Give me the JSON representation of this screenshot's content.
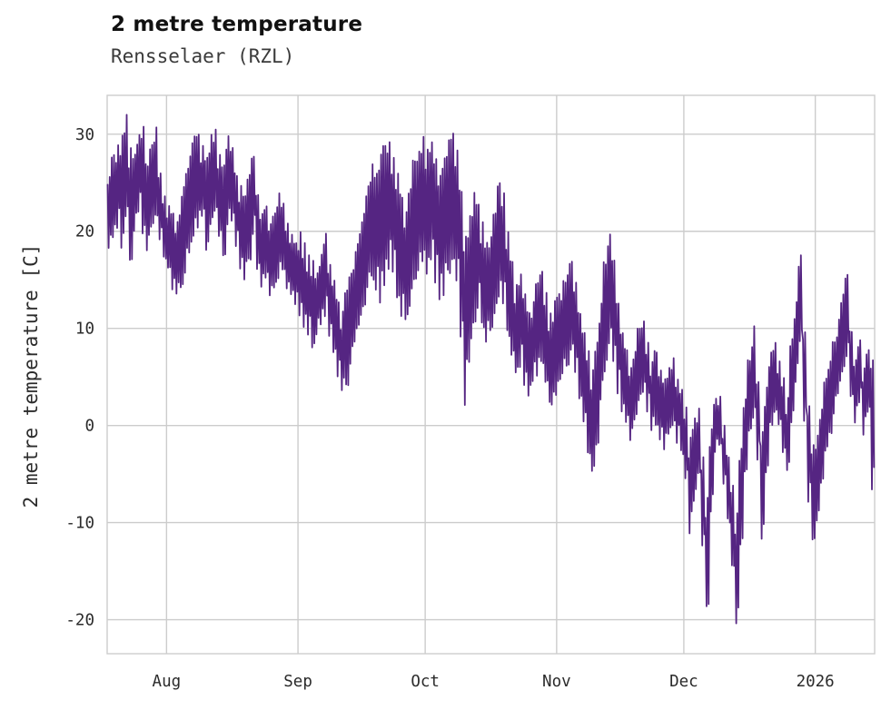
{
  "header": {
    "title": "2 metre temperature",
    "subtitle": "Rensselaer (RZL)"
  },
  "chart_data": {
    "type": "line",
    "title": "2 metre temperature",
    "subtitle": "Rensselaer (RZL)",
    "xlabel": "",
    "ylabel": "2 metre temperature [C]",
    "ylim": [
      -23.5,
      34
    ],
    "y_ticks": [
      -20,
      -10,
      0,
      10,
      20,
      30
    ],
    "x_ticks": [
      {
        "label": "Aug",
        "day": 14
      },
      {
        "label": "Sep",
        "day": 45
      },
      {
        "label": "Oct",
        "day": 75
      },
      {
        "label": "Nov",
        "day": 106
      },
      {
        "label": "Dec",
        "day": 136
      },
      {
        "label": "2026",
        "day": 167
      }
    ],
    "x_range_days": [
      0,
      181
    ],
    "grid": true,
    "legend": "none",
    "line_color": "#552582",
    "grid_color": "#cccccc",
    "daily_min_max": [
      [
        18,
        26
      ],
      [
        19,
        28
      ],
      [
        20,
        29
      ],
      [
        18,
        30
      ],
      [
        21,
        32
      ],
      [
        17,
        29
      ],
      [
        20,
        28
      ],
      [
        22,
        30
      ],
      [
        19,
        31
      ],
      [
        18,
        27
      ],
      [
        20,
        29
      ],
      [
        21,
        31
      ],
      [
        19,
        26
      ],
      [
        17,
        24
      ],
      [
        16,
        23
      ],
      [
        14,
        22
      ],
      [
        13,
        21
      ],
      [
        14,
        24
      ],
      [
        15,
        26
      ],
      [
        17,
        28
      ],
      [
        19,
        30
      ],
      [
        20,
        30.5
      ],
      [
        21,
        29
      ],
      [
        18,
        28
      ],
      [
        20,
        30
      ],
      [
        22,
        31
      ],
      [
        19,
        28
      ],
      [
        17,
        27
      ],
      [
        20,
        30
      ],
      [
        21,
        29
      ],
      [
        18,
        26
      ],
      [
        16,
        25
      ],
      [
        15,
        24
      ],
      [
        17,
        26
      ],
      [
        19,
        28
      ],
      [
        16,
        24
      ],
      [
        14,
        22
      ],
      [
        15,
        23
      ],
      [
        13,
        21
      ],
      [
        14,
        22
      ],
      [
        15,
        24
      ],
      [
        16,
        23
      ],
      [
        14,
        21
      ],
      [
        13,
        20
      ],
      [
        12,
        19
      ],
      [
        11,
        20
      ],
      [
        10,
        19
      ],
      [
        9,
        18
      ],
      [
        8,
        17
      ],
      [
        9,
        16
      ],
      [
        10,
        18
      ],
      [
        11,
        20
      ],
      [
        9,
        17
      ],
      [
        7,
        15
      ],
      [
        5,
        13
      ],
      [
        3,
        12
      ],
      [
        4,
        14
      ],
      [
        6,
        16
      ],
      [
        8,
        18
      ],
      [
        10,
        20
      ],
      [
        12,
        22
      ],
      [
        14,
        25
      ],
      [
        15,
        27
      ],
      [
        13,
        26
      ],
      [
        12,
        28
      ],
      [
        14,
        29
      ],
      [
        16,
        30
      ],
      [
        15,
        28
      ],
      [
        13,
        26
      ],
      [
        11,
        24
      ],
      [
        10,
        22
      ],
      [
        12,
        25
      ],
      [
        14,
        28
      ],
      [
        15,
        29
      ],
      [
        16,
        30
      ],
      [
        15,
        29
      ],
      [
        16,
        30
      ],
      [
        14,
        28
      ],
      [
        12,
        26
      ],
      [
        13,
        28
      ],
      [
        15,
        30
      ],
      [
        16,
        30.5
      ],
      [
        14,
        29
      ],
      [
        8,
        25
      ],
      [
        2,
        20
      ],
      [
        6,
        22
      ],
      [
        10,
        24
      ],
      [
        12,
        23
      ],
      [
        10,
        21
      ],
      [
        8,
        19
      ],
      [
        9,
        20
      ],
      [
        11,
        22
      ],
      [
        13,
        25.5
      ],
      [
        12,
        24
      ],
      [
        9,
        20
      ],
      [
        7,
        17
      ],
      [
        5,
        15
      ],
      [
        6,
        16
      ],
      [
        4,
        14
      ],
      [
        3,
        12
      ],
      [
        4,
        13
      ],
      [
        5,
        15
      ],
      [
        6,
        16
      ],
      [
        4,
        14
      ],
      [
        2,
        12
      ],
      [
        3,
        13
      ],
      [
        4,
        14
      ],
      [
        5,
        15
      ],
      [
        6,
        16
      ],
      [
        7,
        17
      ],
      [
        5,
        15
      ],
      [
        2,
        12
      ],
      [
        0,
        10
      ],
      [
        -3,
        8
      ],
      [
        -5,
        6
      ],
      [
        -2,
        9
      ],
      [
        2,
        13
      ],
      [
        5,
        17
      ],
      [
        8,
        20
      ],
      [
        6,
        17
      ],
      [
        3,
        13
      ],
      [
        1,
        10
      ],
      [
        0,
        8
      ],
      [
        -2,
        6
      ],
      [
        0,
        8
      ],
      [
        2,
        10
      ],
      [
        3,
        11
      ],
      [
        1,
        9
      ],
      [
        -1,
        7
      ],
      [
        0,
        8
      ],
      [
        -2,
        6
      ],
      [
        -3,
        5
      ],
      [
        -1,
        6
      ],
      [
        0,
        7
      ],
      [
        -2,
        5
      ],
      [
        -3,
        4
      ],
      [
        -6,
        2
      ],
      [
        -11.5,
        -1
      ],
      [
        -8,
        1
      ],
      [
        -5,
        2
      ],
      [
        -13,
        -3
      ],
      [
        -19,
        -7
      ],
      [
        -9,
        0
      ],
      [
        -3,
        3
      ],
      [
        -2,
        3
      ],
      [
        -6,
        0
      ],
      [
        -10,
        -3
      ],
      [
        -15,
        -6
      ],
      [
        -21,
        -9
      ],
      [
        -13,
        -2
      ],
      [
        -5,
        3
      ],
      [
        -1,
        7
      ],
      [
        0,
        10.5
      ],
      [
        -4,
        5
      ],
      [
        -12,
        0
      ],
      [
        -5,
        4
      ],
      [
        0,
        8
      ],
      [
        1,
        9
      ],
      [
        0,
        7
      ],
      [
        -3,
        5
      ],
      [
        -5,
        3
      ],
      [
        0,
        9
      ],
      [
        4,
        13
      ],
      [
        8,
        17.8
      ],
      [
        0,
        10
      ],
      [
        -8,
        2
      ],
      [
        -12,
        -2
      ],
      [
        -10,
        -1
      ],
      [
        -6,
        2
      ],
      [
        -3,
        5
      ],
      [
        -1,
        7
      ],
      [
        1,
        9
      ],
      [
        3,
        11
      ],
      [
        5,
        14
      ],
      [
        7,
        16
      ],
      [
        3,
        10
      ],
      [
        0,
        7
      ],
      [
        2,
        9
      ],
      [
        -1,
        6
      ],
      [
        1,
        8
      ],
      [
        -7,
        7
      ]
    ]
  }
}
